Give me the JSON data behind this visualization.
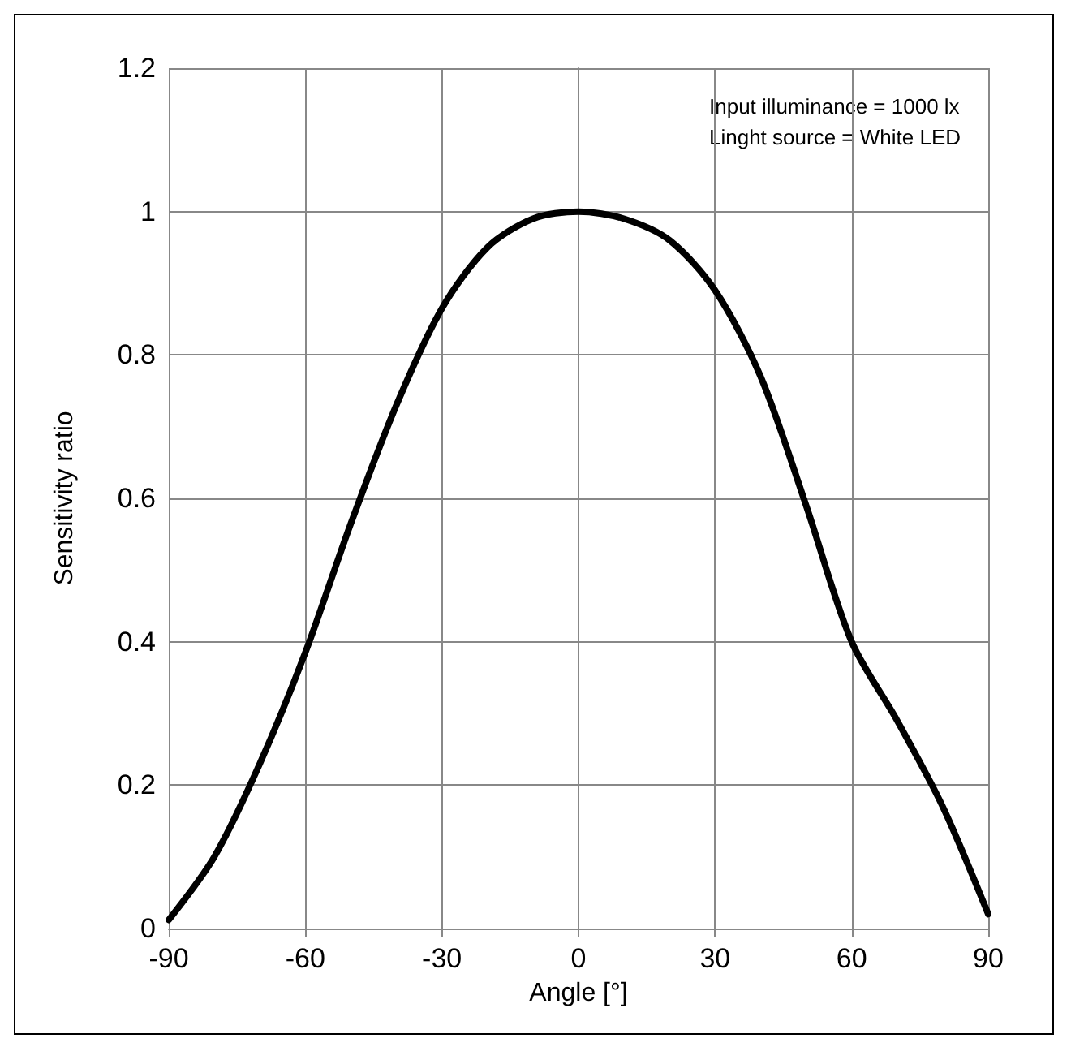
{
  "chart_data": {
    "type": "line",
    "xlabel": "Angle [°]",
    "ylabel": "Sensitivity ratio",
    "annotations": [
      "Input illuminance = 1000 lx",
      "Linght source = White LED"
    ],
    "x": [
      -90,
      -80,
      -70,
      -60,
      -50,
      -40,
      -30,
      -20,
      -10,
      0,
      10,
      20,
      30,
      40,
      50,
      60,
      70,
      80,
      90
    ],
    "series": [
      {
        "color": "#000000",
        "values": [
          0.012,
          0.1,
          0.23,
          0.385,
          0.565,
          0.73,
          0.865,
          0.95,
          0.99,
          1.0,
          0.99,
          0.96,
          0.89,
          0.77,
          0.59,
          0.4,
          0.29,
          0.17,
          0.02
        ]
      }
    ],
    "xlim": [
      -90,
      90
    ],
    "xticks": [
      -90,
      -60,
      -30,
      0,
      30,
      60,
      90
    ],
    "ylim": [
      0,
      1.2
    ],
    "yticks": [
      0,
      0.2,
      0.4,
      0.6,
      0.8,
      1,
      1.2
    ],
    "grid": true,
    "marker": "none",
    "line_style": "solid"
  }
}
